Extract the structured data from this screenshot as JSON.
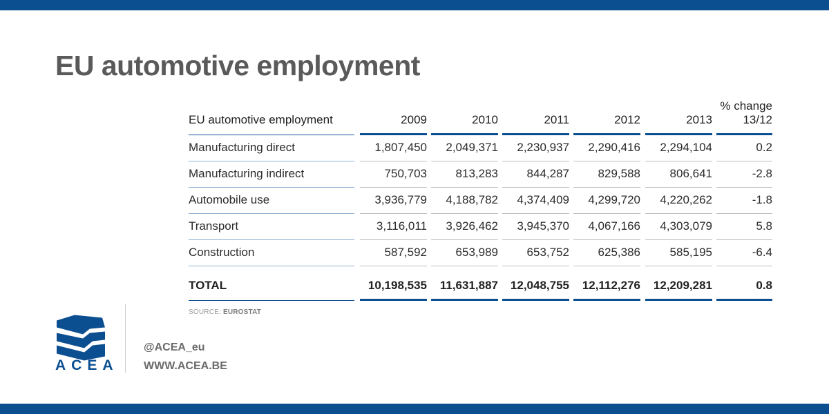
{
  "title": "EU automotive employment",
  "table": {
    "header": {
      "label": "EU automotive employment",
      "years": [
        "2009",
        "2010",
        "2011",
        "2012",
        "2013"
      ],
      "change_line1": "% change",
      "change_line2": "13/12"
    },
    "rows": [
      {
        "label": "Manufacturing direct",
        "values": [
          "1,807,450",
          "2,049,371",
          "2,230,937",
          "2,290,416",
          "2,294,104"
        ],
        "change": "0.2"
      },
      {
        "label": "Manufacturing indirect",
        "values": [
          "750,703",
          "813,283",
          "844,287",
          "829,588",
          "806,641"
        ],
        "change": "-2.8"
      },
      {
        "label": "Automobile use",
        "values": [
          "3,936,779",
          "4,188,782",
          "4,374,409",
          "4,299,720",
          "4,220,262"
        ],
        "change": "-1.8"
      },
      {
        "label": "Transport",
        "values": [
          "3,116,011",
          "3,926,462",
          "3,945,370",
          "4,067,166",
          "4,303,079"
        ],
        "change": "5.8"
      },
      {
        "label": "Construction",
        "values": [
          "587,592",
          "653,989",
          "653,752",
          "625,386",
          "585,195"
        ],
        "change": "-6.4"
      }
    ],
    "total": {
      "label": "TOTAL",
      "values": [
        "10,198,535",
        "11,631,887",
        "12,048,755",
        "12,112,276",
        "12,209,281"
      ],
      "change": "0.8"
    }
  },
  "source": {
    "prefix": "SOURCE:",
    "name": "EUROSTAT"
  },
  "brand": {
    "logo_text": "ACEA",
    "twitter": "@ACEA_eu",
    "website": "WWW.ACEA.BE",
    "color": "#0c4f91"
  }
}
